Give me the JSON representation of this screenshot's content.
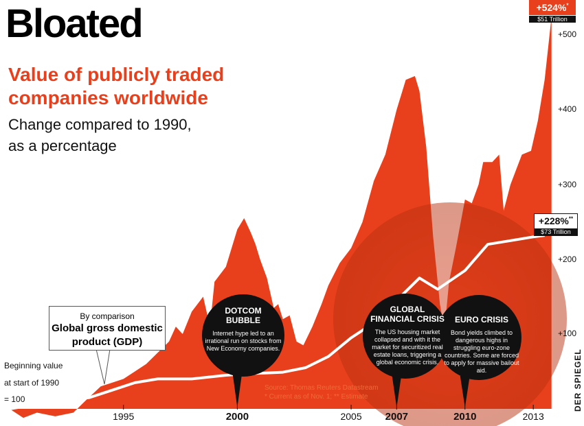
{
  "header": {
    "title": "Bloated",
    "subtitle": "Value of publicly traded companies worldwide",
    "description_line1": "Change compared to 1990,",
    "description_line2": "as a percentage"
  },
  "colors": {
    "market": "#e8401c",
    "gdp_line": "#ffffff",
    "bubble": "#111111",
    "accent": "#e8401c"
  },
  "chart_data": {
    "type": "area",
    "title": "Value of publicly traded companies worldwide",
    "ylabel": "Change compared to 1990, as a percentage",
    "y_tick_labels": [
      "+100",
      "+200",
      "+300",
      "+400",
      "+500"
    ],
    "ylim": [
      -20,
      530
    ],
    "xlim": [
      1990,
      2013.9
    ],
    "x_tick_labels": [
      {
        "year": 1995,
        "label": "1995",
        "bold": false
      },
      {
        "year": 2000,
        "label": "2000",
        "bold": true
      },
      {
        "year": 2005,
        "label": "2005",
        "bold": false
      },
      {
        "year": 2007,
        "label": "2007",
        "bold": true
      },
      {
        "year": 2010,
        "label": "2010",
        "bold": true
      },
      {
        "year": 2013,
        "label": "2013",
        "bold": false
      }
    ],
    "series": [
      {
        "name": "Market value of publicly traded companies",
        "kind": "area",
        "points": [
          [
            1990.0,
            0
          ],
          [
            1990.6,
            -12
          ],
          [
            1991.2,
            -5
          ],
          [
            1992.0,
            -10
          ],
          [
            1992.8,
            -5
          ],
          [
            1993.3,
            10
          ],
          [
            1994.0,
            30
          ],
          [
            1994.5,
            35
          ],
          [
            1995.0,
            40
          ],
          [
            1995.5,
            50
          ],
          [
            1996.0,
            60
          ],
          [
            1996.5,
            75
          ],
          [
            1997.0,
            90
          ],
          [
            1997.3,
            110
          ],
          [
            1997.6,
            100
          ],
          [
            1998.0,
            130
          ],
          [
            1998.5,
            150
          ],
          [
            1998.8,
            110
          ],
          [
            1999.0,
            170
          ],
          [
            1999.5,
            190
          ],
          [
            2000.0,
            240
          ],
          [
            2000.3,
            255
          ],
          [
            2000.6,
            235
          ],
          [
            2000.8,
            220
          ],
          [
            2001.0,
            200
          ],
          [
            2001.3,
            175
          ],
          [
            2001.6,
            135
          ],
          [
            2001.8,
            140
          ],
          [
            2002.0,
            120
          ],
          [
            2002.3,
            125
          ],
          [
            2002.6,
            90
          ],
          [
            2002.9,
            85
          ],
          [
            2003.3,
            110
          ],
          [
            2003.7,
            140
          ],
          [
            2004.0,
            165
          ],
          [
            2004.5,
            195
          ],
          [
            2005.0,
            215
          ],
          [
            2005.5,
            250
          ],
          [
            2006.0,
            305
          ],
          [
            2006.5,
            340
          ],
          [
            2007.0,
            400
          ],
          [
            2007.4,
            440
          ],
          [
            2007.8,
            445
          ],
          [
            2008.0,
            425
          ],
          [
            2008.3,
            350
          ],
          [
            2008.6,
            230
          ],
          [
            2008.9,
            140
          ],
          [
            2009.1,
            105
          ],
          [
            2009.3,
            170
          ],
          [
            2009.6,
            215
          ],
          [
            2010.0,
            280
          ],
          [
            2010.3,
            275
          ],
          [
            2010.6,
            300
          ],
          [
            2010.8,
            330
          ],
          [
            2011.2,
            330
          ],
          [
            2011.5,
            340
          ],
          [
            2011.7,
            265
          ],
          [
            2012.0,
            300
          ],
          [
            2012.5,
            340
          ],
          [
            2012.9,
            345
          ],
          [
            2013.2,
            385
          ],
          [
            2013.5,
            440
          ],
          [
            2013.8,
            524
          ]
        ]
      },
      {
        "name": "Global gross domestic product (GDP)",
        "kind": "line",
        "points": [
          [
            1990.0,
            0
          ],
          [
            1992.0,
            10
          ],
          [
            1993.5,
            15
          ],
          [
            1994.5,
            25
          ],
          [
            1995.5,
            35
          ],
          [
            1996.5,
            40
          ],
          [
            1998.0,
            40
          ],
          [
            1999.5,
            45
          ],
          [
            2000.5,
            47
          ],
          [
            2002.0,
            49
          ],
          [
            2003.0,
            55
          ],
          [
            2004.0,
            70
          ],
          [
            2005.0,
            95
          ],
          [
            2006.0,
            115
          ],
          [
            2007.0,
            145
          ],
          [
            2008.0,
            175
          ],
          [
            2008.8,
            160
          ],
          [
            2010.0,
            185
          ],
          [
            2011.0,
            220
          ],
          [
            2012.0,
            225
          ],
          [
            2013.0,
            230
          ],
          [
            2013.5,
            232
          ]
        ]
      }
    ],
    "callouts": {
      "market": {
        "value": "+524%",
        "footnote": "*",
        "amount": "$51 Trillion"
      },
      "gdp": {
        "value": "+228%",
        "footnote": "**",
        "amount": "$73 Trillion"
      }
    },
    "gdp_note": {
      "lead": "By comparison",
      "label_line1": "Global gross domestic",
      "label_line2": "product (GDP)"
    },
    "baseline_note": {
      "line1": "Beginning value",
      "line2": "at start of 1990",
      "line3": "= 100"
    },
    "events": [
      {
        "year": 2000,
        "title_line1": "DOTCOM",
        "title_line2": "BUBBLE",
        "text": "Internet hype led to an irrational run on stocks from New Economy companies."
      },
      {
        "year": 2007,
        "title_line1": "GLOBAL",
        "title_line2": "FINANCIAL CRISIS",
        "text": "The US housing market collapsed and with it the market for securitized real estate loans, triggering a global economic crisis."
      },
      {
        "year": 2010,
        "title_line1": "EURO CRISIS",
        "title_line2": "",
        "text": "Bond yields climbed to dangerous highs in struggling euro-zone countries. Some are forced to apply for massive bailout aid."
      }
    ],
    "source_line1": "Source: Thomas Reuters Datastream",
    "source_line2": "* Current as of Nov. 1; ** Estimate"
  },
  "brand": "DER SPIEGEL"
}
